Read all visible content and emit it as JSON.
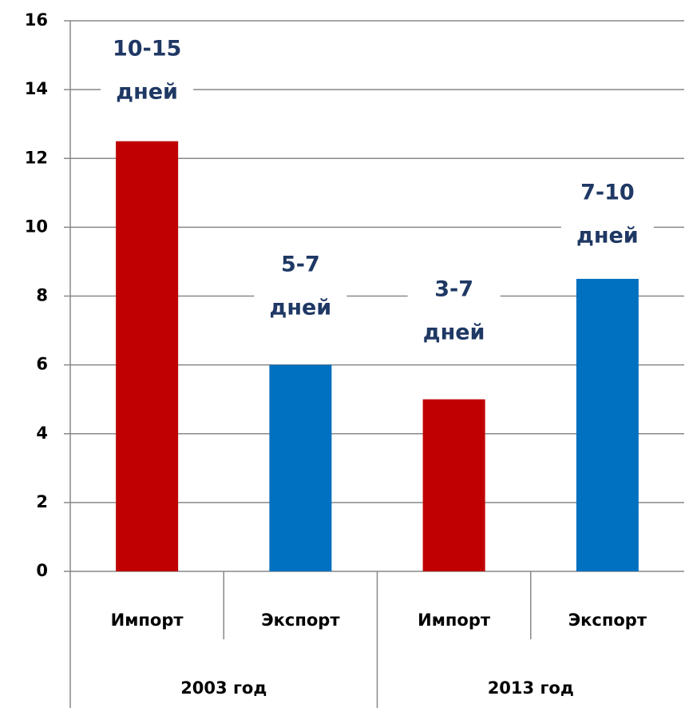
{
  "chart_data": {
    "type": "bar",
    "groups": [
      {
        "name": "2003 год",
        "categories": [
          "Импорт",
          "Экспорт"
        ],
        "values": [
          12.5,
          6
        ],
        "colors": [
          "#c00000",
          "#0070c0"
        ],
        "annotations": [
          [
            "10-15",
            "дней"
          ],
          [
            "5-7",
            "дней"
          ]
        ]
      },
      {
        "name": "2013 год",
        "categories": [
          "Импорт",
          "Экспорт"
        ],
        "values": [
          5,
          8.5
        ],
        "colors": [
          "#c00000",
          "#0070c0"
        ],
        "annotations": [
          [
            "3-7",
            "дней"
          ],
          [
            "7-10",
            "дней"
          ]
        ]
      }
    ],
    "ylim": [
      0,
      16
    ],
    "yticks": [
      0,
      2,
      4,
      6,
      8,
      10,
      12,
      14,
      16
    ],
    "grid": true
  }
}
